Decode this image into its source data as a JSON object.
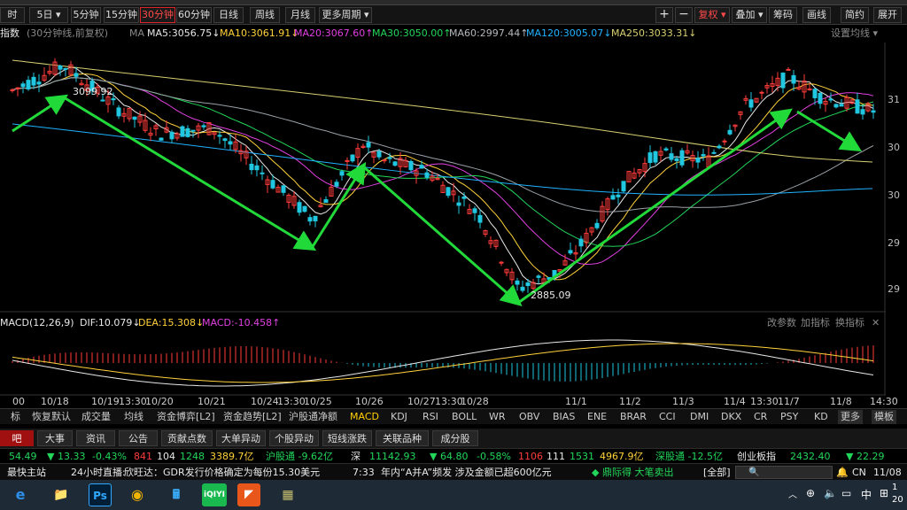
{
  "toolbar": {
    "buttons": [
      {
        "label": "时"
      },
      {
        "label": "5日 ▾"
      },
      {
        "label": "5分钟"
      },
      {
        "label": "15分钟"
      },
      {
        "label": "30分钟"
      },
      {
        "label": "60分钟"
      },
      {
        "label": "日线"
      },
      {
        "label": "周线"
      },
      {
        "label": "月线"
      },
      {
        "label": "更多周期 ▾"
      }
    ],
    "right_buttons": [
      {
        "label": "+"
      },
      {
        "label": "−"
      },
      {
        "label": "复权 ▾"
      },
      {
        "label": "叠加 ▾"
      },
      {
        "label": "筹码"
      },
      {
        "label": "画线"
      },
      {
        "label": "简约"
      },
      {
        "label": "展开"
      }
    ],
    "active_period": "30分钟"
  },
  "ma_header": {
    "index_name": "指数",
    "mode": "(30分钟线,前复权)",
    "ma_label": "MA",
    "ma5": "MA5:3056.75↓",
    "ma10": "MA10:3061.91↓",
    "ma20": "MA20:3067.60↑",
    "ma30": "MA30:3050.00↑",
    "ma60": "MA60:2997.44↑",
    "ma120": "MA120:3005.07↓",
    "ma250": "MA250:3033.31↓",
    "settings": "设置均线 ▾"
  },
  "price_annotations": {
    "high": "3099.92",
    "low": "2885.09"
  },
  "price_axis": [
    "31",
    "30",
    "30",
    "29",
    "29"
  ],
  "macd_header": {
    "label": "MACD(12,26,9)",
    "dif": "DIF:10.079↓",
    "dea": "DEA:15.308↓",
    "macd": "MACD:-10.458↑",
    "change_params": "改参数",
    "add_indicator": "加指标",
    "swap_indicator": "换指标",
    "close": "✕"
  },
  "time_axis": [
    "00",
    "10/18",
    "10/19",
    "13:30",
    "10/20",
    "10/21",
    "10/24",
    "13:30",
    "10/25",
    "10/26",
    "10/27",
    "13:30",
    "10/28",
    "11/1",
    "11/2",
    "11/3",
    "11/4",
    "13:30",
    "11/7",
    "11/8",
    "14:30"
  ],
  "indicator_tabs": {
    "items": [
      "标",
      "恢复默认",
      "成交量",
      "均线",
      "资金博弈[L2]",
      "资金趋势[L2]",
      "沪股通净额",
      "MACD",
      "KDJ",
      "RSI",
      "BOLL",
      "WR",
      "OBV",
      "BIAS",
      "ENE",
      "BRAR",
      "CCI",
      "DMI",
      "DKX",
      "CR",
      "PSY",
      "KD",
      "更多",
      "模板"
    ],
    "active": "MACD"
  },
  "info_tabs": [
    "吧",
    "大事",
    "资讯",
    "公告",
    "贡献点数",
    "大单异动",
    "个股异动",
    "短线涨跌",
    "关联品种",
    "成分股"
  ],
  "ticker": {
    "t1": "54.49",
    "t2": "▼ 13.33",
    "t3": "-0.43%",
    "t4": "841",
    "t5": "104",
    "t6": "1248",
    "t7": "3389.7亿",
    "t8": "沪股通 -9.62亿",
    "t9": "深",
    "t10": "11142.93",
    "t11": "▼ 64.80",
    "t12": "-0.58%",
    "t13": "1106",
    "t14": "111",
    "t15": "1531",
    "t16": "4967.9亿",
    "t17": "深股通 -12.5亿",
    "t18": "创业板指",
    "t19": "2432.40",
    "t20": "▼ 22.29"
  },
  "news": {
    "home": "最快主站",
    "live_label": "24小时直播:",
    "headline1": "欣旺达：GDR发行价格确定为每份15.30美元",
    "time": "7:33",
    "headline2": "年内“A并A”频发 涉及金额已超600亿元",
    "trade": "◆ 鼎际得 大笔卖出",
    "all": "[全部]",
    "search_placeholder": "🔍",
    "cn": "CN",
    "date": "11/08"
  },
  "taskbar": {
    "apps": [
      "e",
      "📁",
      "Ps",
      "◉",
      "🖩",
      "iQIYI",
      "◤",
      "▦"
    ],
    "ime": "中",
    "clock1": "1",
    "clock2": "20"
  },
  "chart_data": {
    "type": "candlestick",
    "title": "",
    "high_label": 3099.92,
    "low_label": 2885.09,
    "trend_lines": [
      {
        "from": "10/18",
        "to": "10/18",
        "points": [
          [
            0,
            3080
          ],
          [
            2,
            3099.92
          ]
        ]
      },
      {
        "from": "10/18",
        "to": "10/25",
        "points": [
          [
            2,
            3099.92
          ],
          [
            11,
            2950
          ]
        ]
      },
      {
        "from": "10/25",
        "to": "10/26",
        "points": [
          [
            11,
            2950
          ],
          [
            13,
            3020
          ]
        ]
      },
      {
        "from": "10/26",
        "to": "11/1",
        "points": [
          [
            13,
            3020
          ],
          [
            19,
            2885.09
          ]
        ]
      },
      {
        "from": "11/1",
        "to": "11/7",
        "points": [
          [
            19,
            2885.09
          ],
          [
            29,
            3090
          ]
        ]
      },
      {
        "from": "11/7",
        "to": "11/8",
        "points": [
          [
            29,
            3090
          ],
          [
            32,
            3056
          ]
        ]
      }
    ],
    "macd_series": [
      "DIF",
      "DEA",
      "MACD"
    ]
  },
  "colors": {
    "up": "#ff3c3c",
    "down": "#21c7e0",
    "trend": "#22d93a",
    "ma5": "#e8e8e8",
    "ma10": "#ffd23a",
    "ma20": "#e040e0",
    "ma30": "#22d65a",
    "ma60": "#9aa0a6",
    "ma120": "#1fb3ff",
    "ma250": "#d8d070"
  }
}
